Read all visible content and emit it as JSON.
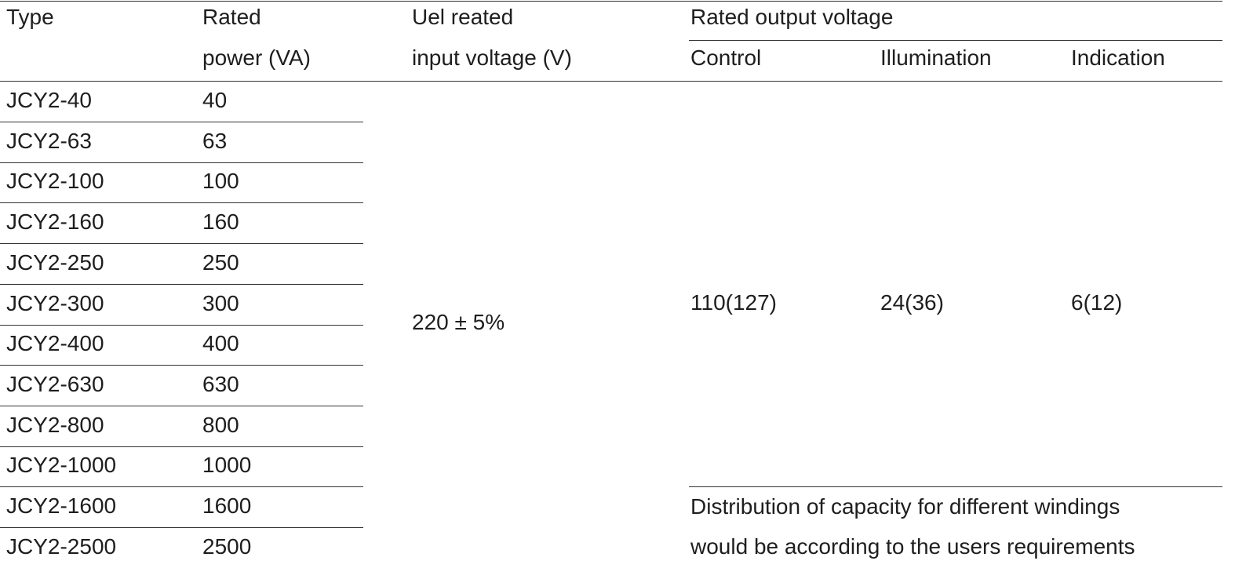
{
  "header": {
    "type": "Type",
    "rated_power": [
      "Rated",
      "power (VA)"
    ],
    "input_voltage": [
      "Uel reated",
      "input voltage (V)"
    ],
    "output_voltage": "Rated output voltage",
    "control": "Control",
    "illumination": "Illumination",
    "indication": "Indication"
  },
  "rows": [
    [
      "JCY2-40",
      40
    ],
    [
      "JCY2-63",
      63
    ],
    [
      "JCY2-100",
      100
    ],
    [
      "JCY2-160",
      160
    ],
    [
      "JCY2-250",
      250
    ],
    [
      "JCY2-300",
      300
    ],
    [
      "JCY2-400",
      400
    ],
    [
      "JCY2-630",
      630
    ],
    [
      "JCY2-800",
      800
    ],
    [
      "JCY2-1000",
      1000
    ],
    [
      "JCY2-1600",
      1600
    ],
    [
      "JCY2-2500",
      2500
    ]
  ],
  "input_voltage_value": "220 ± 5%",
  "outputs": {
    "control": "110(127)",
    "illumination": "24(36)",
    "indication": "6(12)"
  },
  "note": [
    "Distribution of capacity for different windings",
    "would be according to the users requirements"
  ]
}
